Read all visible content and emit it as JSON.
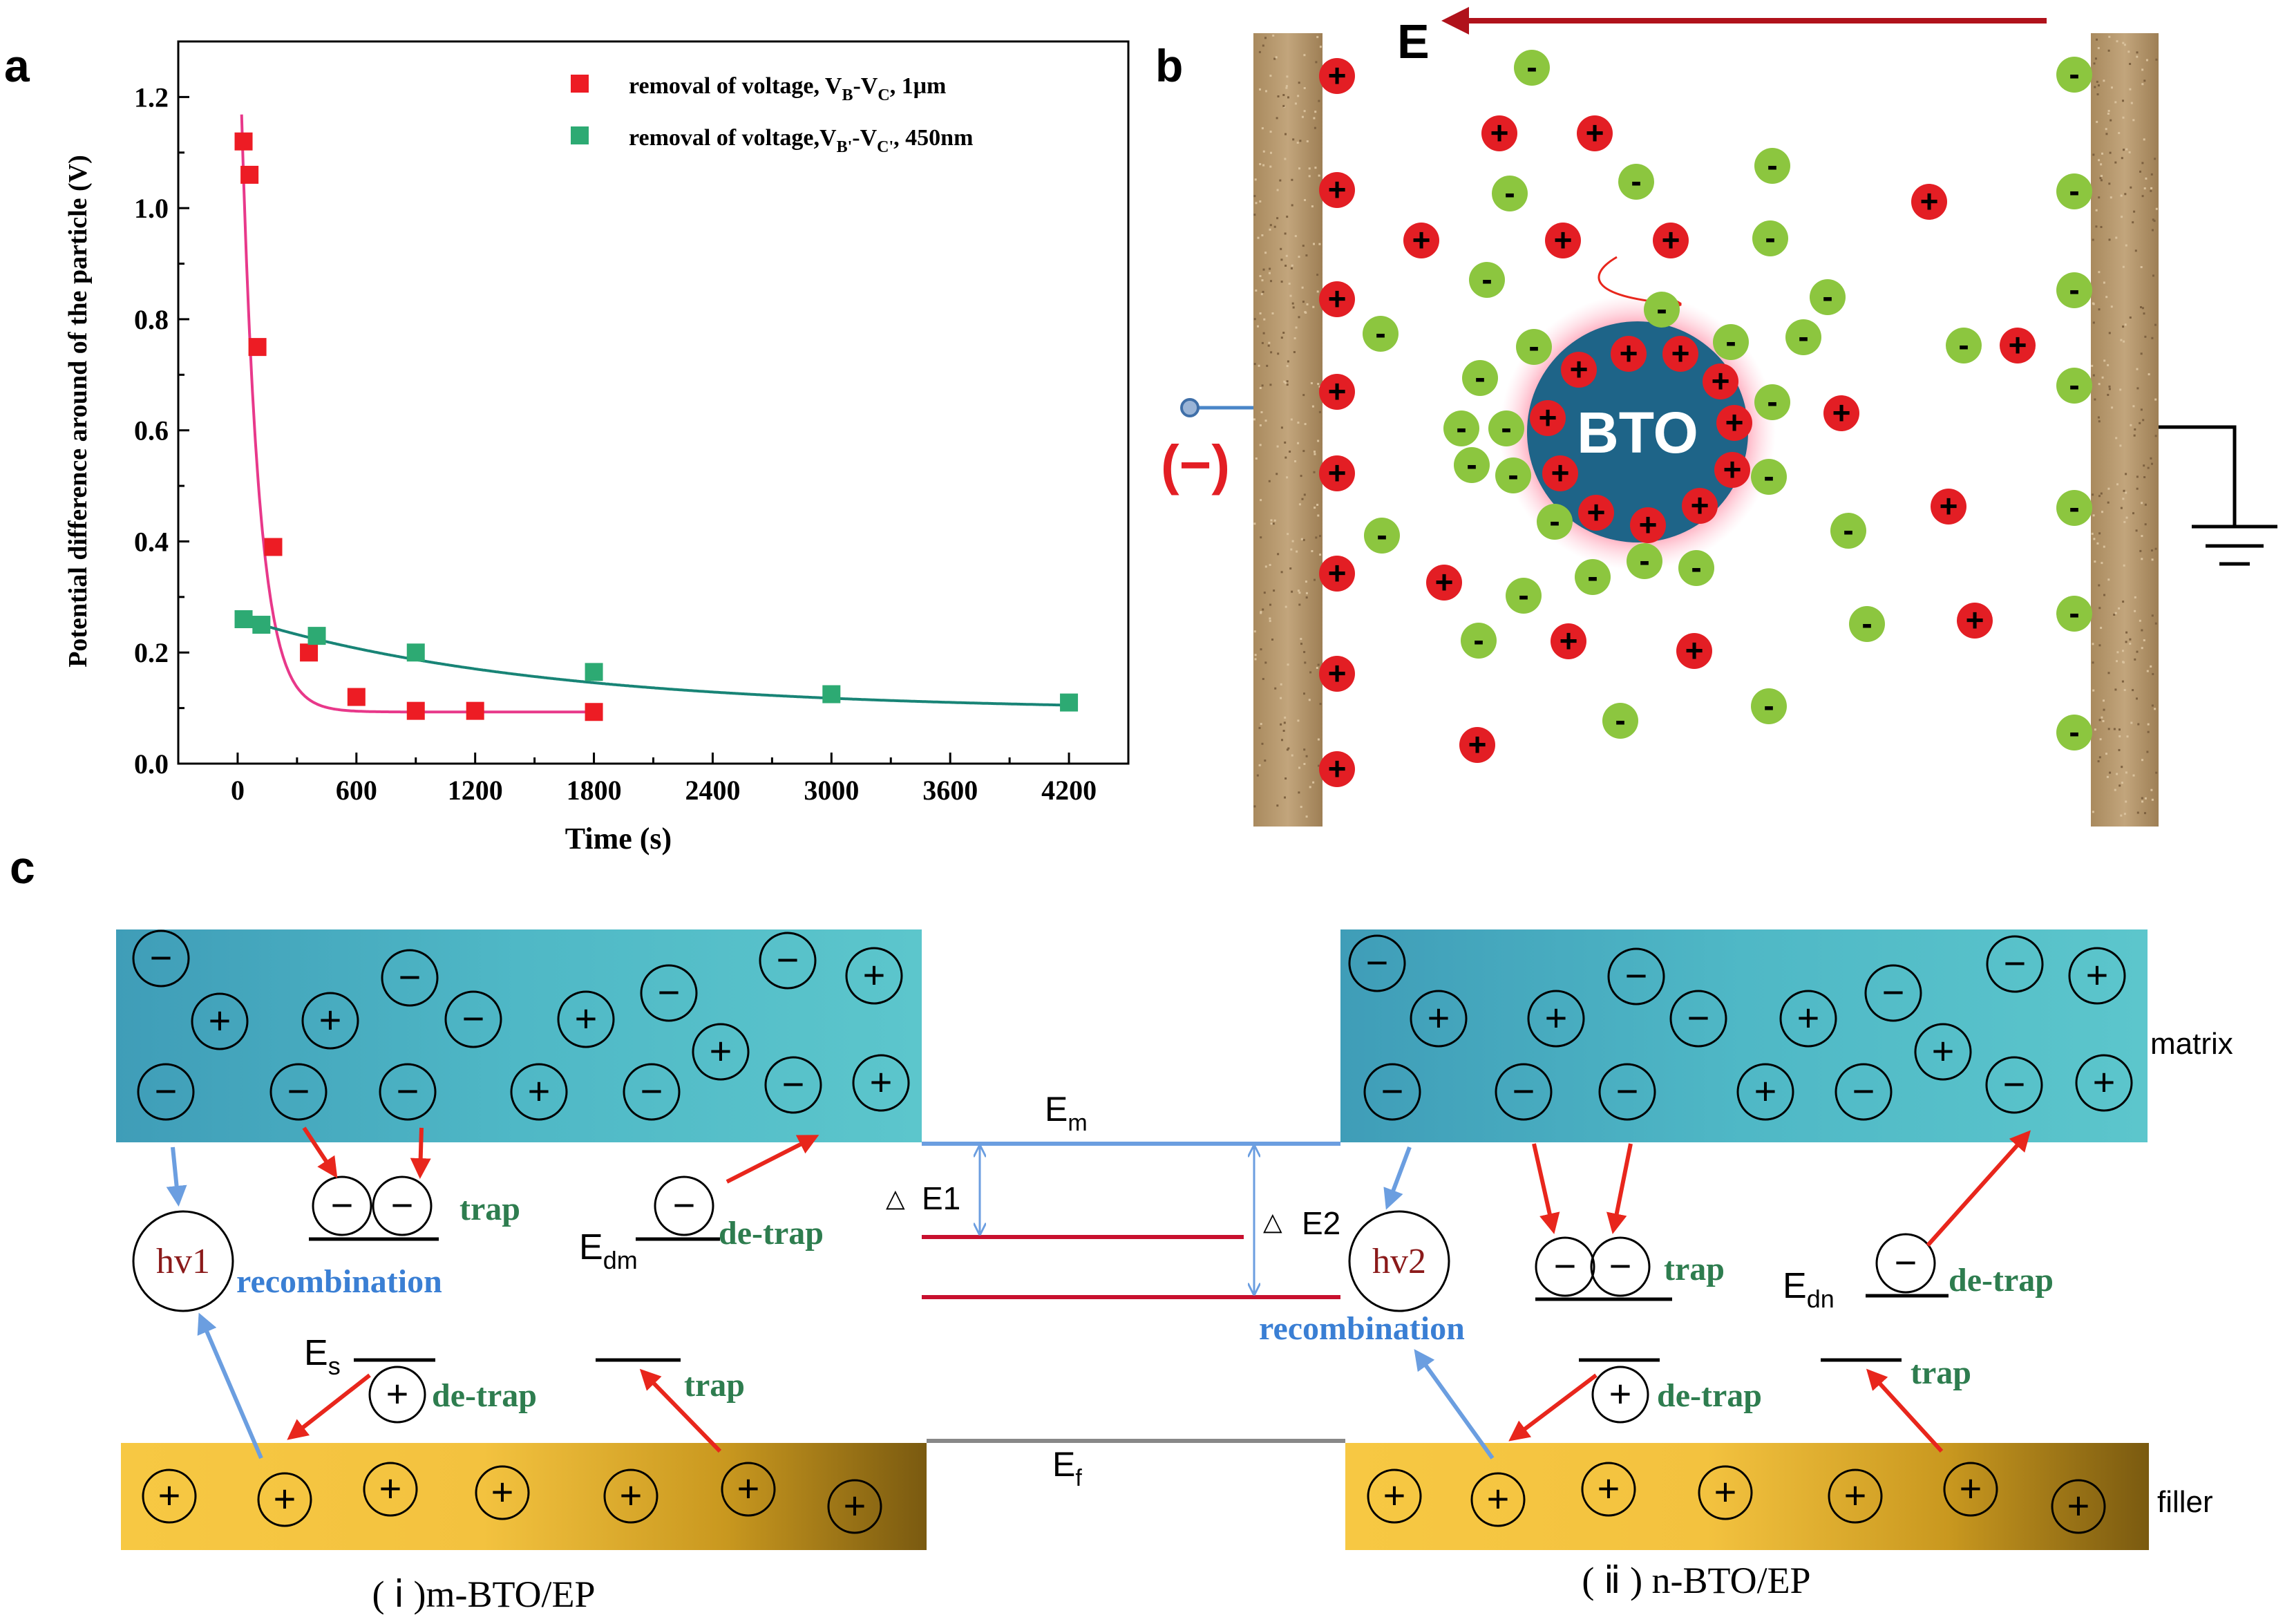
{
  "panel_a": {
    "label": "a",
    "chart_data": {
      "type": "scatter",
      "ylabel": "Potential difference around of the particle (V)",
      "xlabel": "Time (s)",
      "xlim": [
        -300,
        4500
      ],
      "ylim": [
        0,
        1.3
      ],
      "xticks": [
        "0",
        "600",
        "1200",
        "1800",
        "2400",
        "3000",
        "3600",
        "4200"
      ],
      "yticks": [
        "0.0",
        "0.2",
        "0.4",
        "0.6",
        "0.8",
        "1.0",
        "1.2"
      ],
      "legend_position": "top-right",
      "series": [
        {
          "name_parts": [
            "removal of voltage, V",
            "B",
            "-V",
            "C",
            ", 1μm"
          ],
          "color": "#ed1c24",
          "line_color": "#e8388a",
          "x": [
            30,
            60,
            100,
            180,
            360,
            600,
            900,
            1200,
            1800
          ],
          "y": [
            1.12,
            1.06,
            0.75,
            0.39,
            0.2,
            0.12,
            0.095,
            0.095,
            0.093
          ]
        },
        {
          "name_parts": [
            "removal of voltage,V",
            "B'",
            "-V",
            "C'",
            ", 450nm"
          ],
          "color": "#2daa73",
          "line_color": "#188476",
          "x": [
            30,
            120,
            400,
            900,
            1800,
            3000,
            4200
          ],
          "y": [
            0.26,
            0.25,
            0.23,
            0.2,
            0.165,
            0.125,
            0.11
          ]
        }
      ]
    }
  },
  "panel_b": {
    "label": "b",
    "field_label": "E",
    "particle_label": "BTO",
    "electrode_sign": "(−)",
    "plus": "+",
    "minus": "-",
    "colors": {
      "positive": "#e31e24",
      "negative": "#8cc63f",
      "particle": "#1e6488",
      "arrow": "#b0121b"
    }
  },
  "panel_c": {
    "label": "c",
    "matrix_label": "matrix",
    "filler_label": "filler",
    "plus": "+",
    "minus": "−",
    "em": "E",
    "em_sub": "m",
    "ef": "E",
    "ef_sub": "f",
    "delta1": "E1",
    "delta2": "E2",
    "delta_symbol": "△",
    "left": {
      "hv": "hv1",
      "recombination": "recombination",
      "trap_top": "trap",
      "detrap_top": "de-trap",
      "edm": "E",
      "edm_sub": "dm",
      "es": "E",
      "es_sub": "s",
      "detrap_bottom": "de-trap",
      "trap_bottom": "trap",
      "caption": "( ⅰ )m-BTO/EP"
    },
    "right": {
      "hv": "hv2",
      "recombination": "recombination",
      "trap_top": "trap",
      "detrap_top": "de-trap",
      "edn": "E",
      "edn_sub": "dn",
      "detrap_bottom": "de-trap",
      "trap_bottom": "trap",
      "caption": "( ⅱ ) n-BTO/EP"
    }
  }
}
